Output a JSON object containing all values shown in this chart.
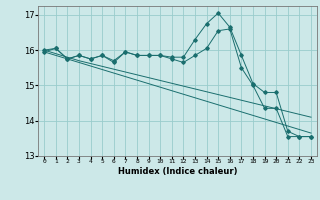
{
  "xlabel": "Humidex (Indice chaleur)",
  "x_values": [
    0,
    1,
    2,
    3,
    4,
    5,
    6,
    7,
    8,
    9,
    10,
    11,
    12,
    13,
    14,
    15,
    16,
    17,
    18,
    19,
    20,
    21,
    22,
    23
  ],
  "line1": [
    16.0,
    16.05,
    15.75,
    15.85,
    15.75,
    15.85,
    15.7,
    15.95,
    15.85,
    15.85,
    15.85,
    15.8,
    15.8,
    16.3,
    16.75,
    17.05,
    16.65,
    15.85,
    15.05,
    14.8,
    14.8,
    13.7,
    13.55,
    13.55
  ],
  "line2": [
    15.95,
    16.05,
    15.75,
    15.85,
    15.75,
    15.85,
    15.65,
    15.95,
    15.85,
    15.85,
    15.85,
    15.75,
    15.65,
    15.85,
    16.05,
    16.55,
    16.6,
    15.5,
    15.0,
    14.35,
    14.35,
    13.55,
    13.55,
    13.55
  ],
  "line3": [
    16.0,
    15.9,
    15.8,
    15.7,
    15.62,
    15.54,
    15.46,
    15.38,
    15.3,
    15.22,
    15.14,
    15.06,
    14.98,
    14.9,
    14.82,
    14.74,
    14.66,
    14.58,
    14.5,
    14.42,
    14.34,
    14.26,
    14.18,
    14.1
  ],
  "line4": [
    15.95,
    15.85,
    15.75,
    15.65,
    15.55,
    15.45,
    15.35,
    15.25,
    15.15,
    15.05,
    14.95,
    14.85,
    14.75,
    14.65,
    14.55,
    14.45,
    14.35,
    14.25,
    14.15,
    14.05,
    13.95,
    13.85,
    13.75,
    13.65
  ],
  "bg_color": "#cce8e8",
  "grid_color": "#99cccc",
  "line_color": "#1a6e6e",
  "ylim": [
    13.0,
    17.25
  ],
  "yticks": [
    13,
    14,
    15,
    16,
    17
  ]
}
